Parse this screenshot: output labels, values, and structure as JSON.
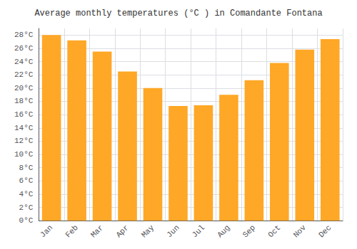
{
  "chart_data": {
    "type": "bar",
    "title": "Average monthly temperatures (°C ) in Comandante Fontana",
    "categories": [
      "Jan",
      "Feb",
      "Mar",
      "Apr",
      "May",
      "Jun",
      "Jul",
      "Aug",
      "Sep",
      "Oct",
      "Nov",
      "Dec"
    ],
    "values": [
      28.0,
      27.2,
      25.5,
      22.5,
      20.0,
      17.3,
      17.4,
      19.0,
      21.2,
      23.8,
      25.8,
      27.4
    ],
    "color": "#FFA726",
    "ylim": [
      0,
      29
    ],
    "yticks": [
      {
        "value": 0,
        "label": "0°C"
      },
      {
        "value": 2,
        "label": "2°C"
      },
      {
        "value": 4,
        "label": "4°C"
      },
      {
        "value": 6,
        "label": "6°C"
      },
      {
        "value": 8,
        "label": "8°C"
      },
      {
        "value": 10,
        "label": "10°C"
      },
      {
        "value": 12,
        "label": "12°C"
      },
      {
        "value": 14,
        "label": "14°C"
      },
      {
        "value": 16,
        "label": "16°C"
      },
      {
        "value": 18,
        "label": "18°C"
      },
      {
        "value": 20,
        "label": "20°C"
      },
      {
        "value": 22,
        "label": "22°C"
      },
      {
        "value": 24,
        "label": "24°C"
      },
      {
        "value": 26,
        "label": "26°C"
      },
      {
        "value": 28,
        "label": "28°C"
      }
    ],
    "grid": true
  }
}
